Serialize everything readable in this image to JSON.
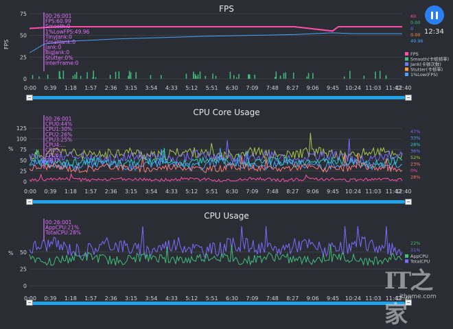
{
  "fps_panel": {
    "title": "FPS",
    "ylabel": "FPS",
    "yticks": [
      "75",
      "50",
      "25",
      "0"
    ],
    "xticks": [
      "0:00",
      "0:39",
      "1:18",
      "1:57",
      "2:36",
      "3:15",
      "3:54",
      "4:33",
      "5:12",
      "5:51",
      "6:30",
      "7:09",
      "7:48",
      "8:27",
      "9:06",
      "9:45",
      "10:24",
      "11:03",
      "11:42",
      "12:40"
    ],
    "tooltip": [
      "00:26:001",
      "FPS:60.99",
      "Smooth:0",
      "1%LowFPS:49.96",
      "TinyJank:0",
      "SmallJank:0",
      "Jank:0",
      "BigJank:0",
      "Stutter:0%",
      "InterFrame:0"
    ],
    "right_values": [
      {
        "text": "60",
        "color": "#ff4fa8"
      },
      {
        "text": "0.00",
        "color": "#3fbf7a"
      },
      {
        "text": "0",
        "color": "#6c7cff"
      },
      {
        "text": "0.00",
        "color": "#ff9a3c"
      },
      {
        "text": "49.96",
        "color": "#4aa3ff"
      }
    ],
    "legend": [
      {
        "text": "FPS",
        "color": "#ff4fa8"
      },
      {
        "text": "Smooth(卡顿频率)",
        "color": "#3fbf7a"
      },
      {
        "text": "Jank(卡顿次数)",
        "color": "#6c7cff"
      },
      {
        "text": "Stutter(卡顿率)",
        "color": "#ff9a3c"
      },
      {
        "text": "1%Low(FPS)",
        "color": "#4aa3ff"
      }
    ]
  },
  "cpu_core_panel": {
    "title": "CPU Core Usage",
    "ylabel": "%",
    "yticks": [
      "125",
      "100",
      "75",
      "50",
      "25",
      "0"
    ],
    "xticks": [
      "0:00",
      "0:39",
      "1:18",
      "1:57",
      "2:36",
      "3:15",
      "3:54",
      "4:33",
      "5:12",
      "5:51",
      "6:30",
      "7:09",
      "7:48",
      "8:27",
      "9:06",
      "9:45",
      "10:24",
      "11:03",
      "11:42",
      "12:40"
    ],
    "tooltip": [
      "00:26:001",
      "CPU0:44%",
      "CPU1:30%",
      "CPU2:26%",
      "CPU3:25%",
      "CPU4:...",
      "CPU5:...",
      "CPU6:...",
      "CPU7:..."
    ],
    "right_values": [
      {
        "text": "47%",
        "color": "#7a6cff"
      },
      {
        "text": "33%",
        "color": "#4aa3ff"
      },
      {
        "text": "28%",
        "color": "#2ad0c0"
      },
      {
        "text": "36%",
        "color": "#6c7cff"
      },
      {
        "text": "52%",
        "color": "#a8c84a"
      },
      {
        "text": "23%",
        "color": "#ff7a7a"
      },
      {
        "text": "0%",
        "color": "#ff4fa8"
      },
      {
        "text": "28%",
        "color": "#ff6e6e"
      }
    ]
  },
  "cpu_usage_panel": {
    "title": "CPU Usage",
    "ylabel": "%",
    "yticks": [
      "50",
      "25",
      "0"
    ],
    "xticks": [
      "0:00",
      "0:39",
      "1:18",
      "1:57",
      "2:36",
      "3:15",
      "3:54",
      "4:33",
      "5:12",
      "5:51",
      "6:30",
      "7:09",
      "7:48",
      "8:27",
      "9:06",
      "9:45",
      "10:24",
      "11:03",
      "11:42",
      "12:40"
    ],
    "tooltip": [
      "00:26:001",
      "AppCPU:21%",
      "TotalCPU:28%"
    ],
    "right_values": [
      {
        "text": "22%",
        "color": "#3fbf7a"
      },
      {
        "text": "31%",
        "color": "#7a6cff"
      }
    ],
    "legend": [
      {
        "text": "AppCPU",
        "color": "#3fbf7a"
      },
      {
        "text": "TotalCPU",
        "color": "#7a6cff"
      }
    ]
  },
  "header": {
    "clock": "12:34",
    "pause_icon": "pause-icon"
  },
  "watermark": {
    "logo_text": "IT之家",
    "url": "ithome.com"
  },
  "chart_data": [
    {
      "type": "line",
      "title": "FPS",
      "ylabel": "FPS",
      "ylim": [
        0,
        75
      ],
      "xlim": [
        "0:00",
        "12:40"
      ],
      "series": [
        {
          "name": "FPS",
          "color": "#ff4fa8",
          "values": [
            [
              0,
              58
            ],
            [
              1,
              60
            ],
            [
              3,
              60
            ],
            [
              6,
              60
            ],
            [
              9,
              60
            ],
            [
              10.3,
              55
            ],
            [
              10.5,
              60
            ],
            [
              12.67,
              60
            ]
          ]
        },
        {
          "name": "1%Low(FPS)",
          "color": "#4aa3ff",
          "values": [
            [
              0,
              30
            ],
            [
              0.5,
              40
            ],
            [
              1.2,
              43
            ],
            [
              3,
              46
            ],
            [
              6,
              49
            ],
            [
              9,
              51
            ],
            [
              10.3,
              53
            ],
            [
              11,
              52
            ],
            [
              12.67,
              52
            ]
          ]
        },
        {
          "name": "Smooth(卡顿频率)",
          "color": "#3fbf7a",
          "values": [
            [
              0,
              0
            ],
            [
              12.67,
              0
            ]
          ]
        },
        {
          "name": "Jank(卡顿次数)",
          "color": "#6c7cff",
          "values": [
            [
              0,
              0
            ],
            [
              12.67,
              0
            ]
          ]
        },
        {
          "name": "Stutter(卡顿率)",
          "color": "#ff9a3c",
          "values": [
            [
              0,
              0
            ],
            [
              12.67,
              0
            ]
          ]
        }
      ]
    },
    {
      "type": "line",
      "title": "CPU Core Usage",
      "ylabel": "%",
      "ylim": [
        0,
        125
      ],
      "xlim": [
        "0:00",
        "12:40"
      ],
      "series": [
        {
          "color": "#a8c84a",
          "base": 65,
          "amp": 12
        },
        {
          "color": "#7a6cff",
          "base": 57,
          "amp": 12
        },
        {
          "color": "#2ad0c0",
          "base": 45,
          "amp": 10
        },
        {
          "color": "#4aa3ff",
          "base": 40,
          "amp": 10
        },
        {
          "color": "#ff7a7a",
          "base": 32,
          "amp": 8
        },
        {
          "color": "#ff4fa8",
          "base": 5,
          "amp": 4
        }
      ]
    },
    {
      "type": "line",
      "title": "CPU Usage",
      "ylabel": "%",
      "ylim": [
        0,
        62
      ],
      "xlim": [
        "0:00",
        "12:40"
      ],
      "series": [
        {
          "name": "TotalCPU",
          "color": "#7a6cff",
          "base": 40,
          "amp": 8
        },
        {
          "name": "AppCPU",
          "color": "#3fbf7a",
          "base": 28,
          "amp": 5
        }
      ]
    }
  ]
}
